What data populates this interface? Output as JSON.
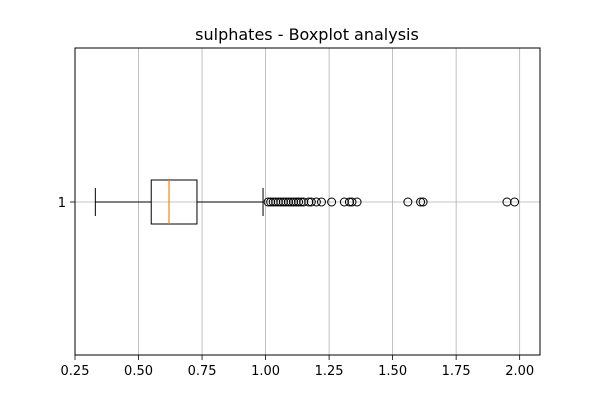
{
  "chart_data": {
    "type": "boxplot",
    "orientation": "horizontal",
    "title": "sulphates - Boxplot analysis",
    "xlabel": "",
    "ylabel": "",
    "xlim": [
      0.25,
      2.08
    ],
    "x_ticks": [
      "0.25",
      "0.50",
      "0.75",
      "1.00",
      "1.25",
      "1.50",
      "1.75",
      "2.00"
    ],
    "x_tick_values": [
      0.25,
      0.5,
      0.75,
      1.0,
      1.25,
      1.5,
      1.75,
      2.0
    ],
    "y_ticks": [
      "1"
    ],
    "grid": true,
    "box": {
      "label": "1",
      "whisker_low": 0.33,
      "q1": 0.55,
      "median": 0.62,
      "q3": 0.73,
      "whisker_high": 0.99,
      "outliers": [
        1.01,
        1.02,
        1.03,
        1.04,
        1.05,
        1.06,
        1.07,
        1.08,
        1.09,
        1.1,
        1.11,
        1.12,
        1.13,
        1.14,
        1.15,
        1.17,
        1.18,
        1.2,
        1.22,
        1.26,
        1.31,
        1.33,
        1.34,
        1.36,
        1.56,
        1.61,
        1.62,
        1.95,
        1.98
      ]
    },
    "colors": {
      "box": "#000000",
      "median": "#ff7f0e",
      "grid": "#b0b0b0"
    }
  }
}
